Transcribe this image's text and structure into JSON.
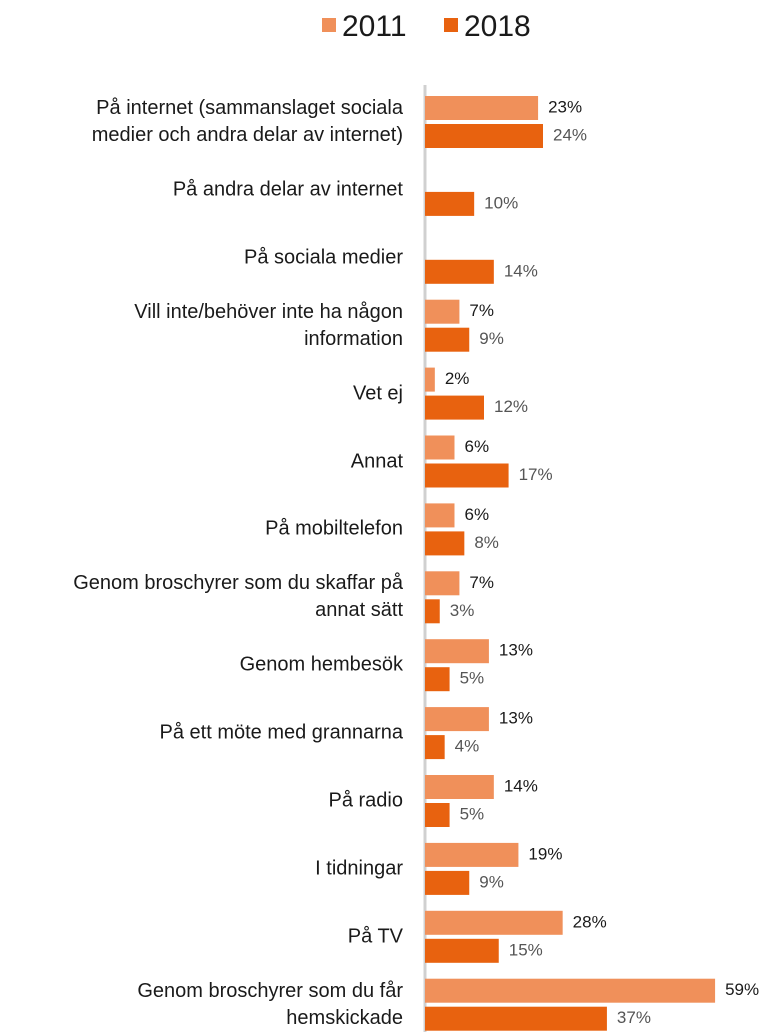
{
  "chart_data": {
    "type": "bar",
    "orientation": "horizontal",
    "categories": [
      "På internet (sammanslaget sociala\nmedier och andra delar av internet)",
      "På andra delar av internet",
      "På sociala medier",
      "Vill inte/behöver inte ha någon\ninformation",
      "Vet ej",
      "Annat",
      "På mobiltelefon",
      "Genom broschyrer som du skaffar på\nannat sätt",
      "Genom hembesök",
      "På ett möte med grannarna",
      "På radio",
      "I tidningar",
      "På TV",
      "Genom broschyrer som du får\nhemskickade"
    ],
    "series": [
      {
        "name": "2011",
        "color": "#f0905a",
        "values": [
          23,
          null,
          null,
          7,
          2,
          6,
          6,
          7,
          13,
          13,
          14,
          19,
          28,
          59
        ],
        "value_labels": [
          "23%",
          null,
          null,
          "7%",
          "2%",
          "6%",
          "6%",
          "7%",
          "13%",
          "13%",
          "14%",
          "19%",
          "28%",
          "59%"
        ]
      },
      {
        "name": "2018",
        "color": "#e8620f",
        "values": [
          24,
          10,
          14,
          9,
          12,
          17,
          8,
          3,
          5,
          4,
          5,
          9,
          15,
          37
        ],
        "value_labels": [
          "24%",
          "10%",
          "14%",
          "9%",
          "12%",
          "17%",
          "8%",
          "3%",
          "5%",
          "4%",
          "5%",
          "9%",
          "15%",
          "37%"
        ]
      }
    ],
    "xlim": [
      0,
      60
    ],
    "legend": "top"
  }
}
